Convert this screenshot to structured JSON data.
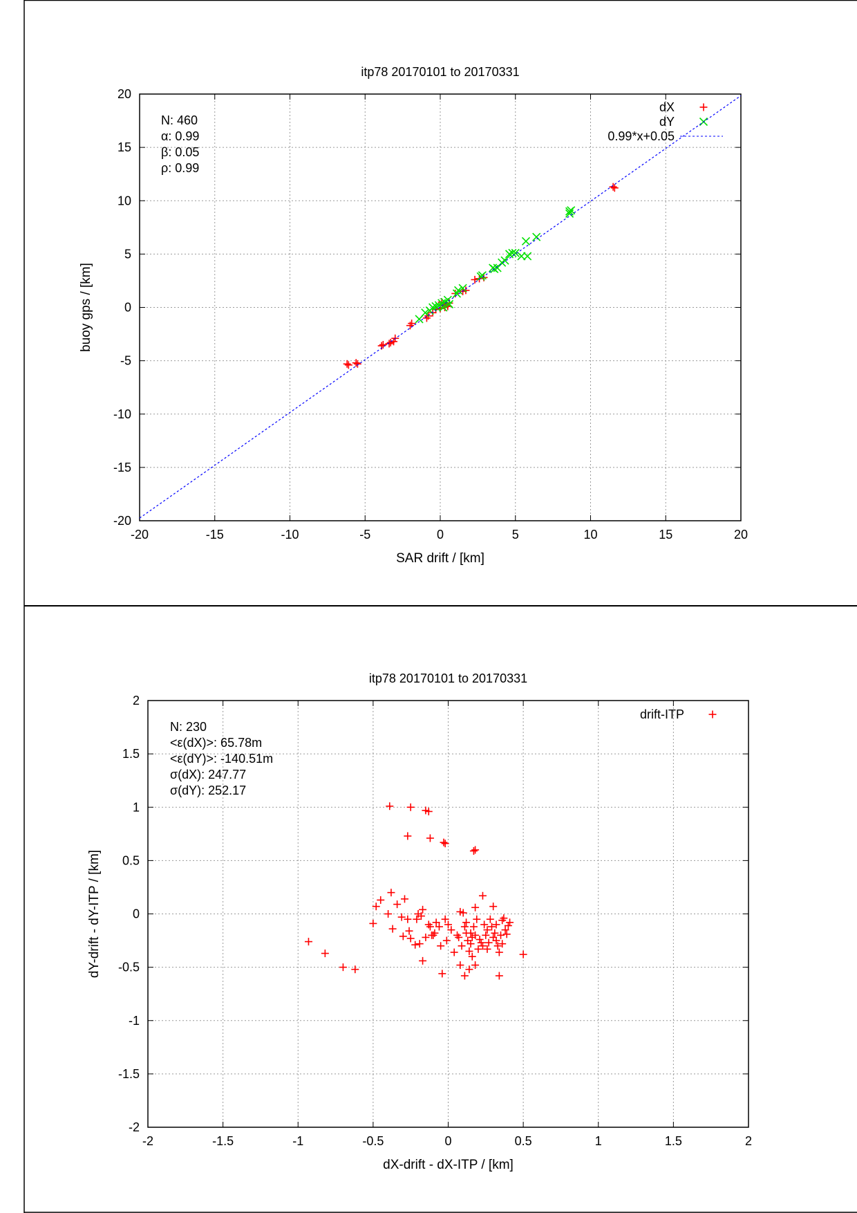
{
  "chart_data": [
    {
      "type": "scatter",
      "title": "itp78 20170101 to 20170331",
      "xlabel": "SAR drift / [km]",
      "ylabel": "buoy gps / [km]",
      "xlim": [
        -20,
        20
      ],
      "ylim": [
        -20,
        20
      ],
      "xticks": [
        -20,
        -15,
        -10,
        -5,
        0,
        5,
        10,
        15,
        20
      ],
      "yticks": [
        -20,
        -15,
        -10,
        -5,
        0,
        5,
        10,
        15,
        20
      ],
      "grid": true,
      "legend_position": "top-right",
      "stats": [
        "N: 460",
        "α: 0.99",
        "β: 0.05",
        "ρ: 0.99"
      ],
      "fit": {
        "label": "0.99*x+0.05",
        "slope": 0.99,
        "intercept": 0.05,
        "color": "#0000ff"
      },
      "series": [
        {
          "name": "dX",
          "marker": "plus",
          "color": "#ff0000",
          "points": [
            [
              -6.2,
              -5.3
            ],
            [
              -6.1,
              -5.4
            ],
            [
              -5.6,
              -5.2
            ],
            [
              -5.5,
              -5.3
            ],
            [
              -3.9,
              -3.6
            ],
            [
              -3.8,
              -3.5
            ],
            [
              -3.4,
              -3.4
            ],
            [
              -3.3,
              -3.3
            ],
            [
              -3.1,
              -3.2
            ],
            [
              -3.0,
              -2.9
            ],
            [
              -2.0,
              -1.7
            ],
            [
              -1.9,
              -1.5
            ],
            [
              -0.9,
              -1.0
            ],
            [
              -0.8,
              -0.8
            ],
            [
              -0.5,
              -0.5
            ],
            [
              -0.3,
              -0.2
            ],
            [
              0,
              -0.1
            ],
            [
              0.2,
              0.2
            ],
            [
              0.3,
              0.0
            ],
            [
              0.5,
              0.1
            ],
            [
              0.1,
              0.5
            ],
            [
              0.4,
              0.3
            ],
            [
              0.6,
              0.4
            ],
            [
              1.0,
              1.3
            ],
            [
              1.5,
              1.5
            ],
            [
              1.7,
              1.6
            ],
            [
              2.3,
              2.6
            ],
            [
              2.6,
              2.7
            ],
            [
              2.9,
              2.8
            ],
            [
              11.5,
              11.3
            ],
            [
              11.6,
              11.2
            ]
          ]
        },
        {
          "name": "dY",
          "marker": "cross",
          "color": "#00e000",
          "points": [
            [
              -1.4,
              -1.1
            ],
            [
              -1.0,
              -0.5
            ],
            [
              -0.7,
              -0.3
            ],
            [
              -0.5,
              0
            ],
            [
              -0.3,
              0.1
            ],
            [
              -0.1,
              0.2
            ],
            [
              0.1,
              0.4
            ],
            [
              0.3,
              0.5
            ],
            [
              0.5,
              0.7
            ],
            [
              0.6,
              0.3
            ],
            [
              0.2,
              0.0
            ],
            [
              1.1,
              1.3
            ],
            [
              1.2,
              1.6
            ],
            [
              1.5,
              1.8
            ],
            [
              2.7,
              2.9
            ],
            [
              2.8,
              3.0
            ],
            [
              3.5,
              3.7
            ],
            [
              3.6,
              3.6
            ],
            [
              3.8,
              3.7
            ],
            [
              4.1,
              4.2
            ],
            [
              4.3,
              4.4
            ],
            [
              4.6,
              5.0
            ],
            [
              4.8,
              5.1
            ],
            [
              5.0,
              5.1
            ],
            [
              5.4,
              4.8
            ],
            [
              5.8,
              4.8
            ],
            [
              5.7,
              6.2
            ],
            [
              6.4,
              6.6
            ],
            [
              8.6,
              9.0
            ],
            [
              8.6,
              8.8
            ],
            [
              8.7,
              9.1
            ]
          ]
        }
      ]
    },
    {
      "type": "scatter",
      "title": "itp78 20170101 to 20170331",
      "xlabel": "dX-drift - dX-ITP / [km]",
      "ylabel": "dY-drift - dY-ITP / [km]",
      "xlim": [
        -2,
        2
      ],
      "ylim": [
        -2,
        2
      ],
      "xticks": [
        -2,
        -1.5,
        -1,
        -0.5,
        0,
        0.5,
        1,
        1.5,
        2
      ],
      "yticks": [
        -2,
        -1.5,
        -1,
        -0.5,
        0,
        0.5,
        1,
        1.5,
        2
      ],
      "grid": true,
      "legend_position": "top-right",
      "stats": [
        "N: 230",
        "<ε(dX)>:  65.78m",
        "<ε(dY)>: -140.51m",
        "σ(dX):  247.77",
        "σ(dY):  252.17"
      ],
      "series": [
        {
          "name": "drift-ITP",
          "marker": "plus",
          "color": "#ff0000",
          "points": [
            [
              -0.39,
              1.01
            ],
            [
              -0.25,
              1.0
            ],
            [
              -0.15,
              0.97
            ],
            [
              -0.13,
              0.96
            ],
            [
              -0.27,
              0.73
            ],
            [
              -0.12,
              0.71
            ],
            [
              -0.03,
              0.67
            ],
            [
              -0.02,
              0.66
            ],
            [
              0.17,
              0.59
            ],
            [
              0.18,
              0.6
            ],
            [
              -0.93,
              -0.26
            ],
            [
              -0.82,
              -0.37
            ],
            [
              -0.7,
              -0.5
            ],
            [
              -0.62,
              -0.52
            ],
            [
              -0.5,
              -0.09
            ],
            [
              -0.48,
              0.07
            ],
            [
              -0.45,
              0.13
            ],
            [
              -0.38,
              0.2
            ],
            [
              -0.34,
              0.09
            ],
            [
              -0.29,
              0.14
            ],
            [
              -0.31,
              -0.03
            ],
            [
              -0.3,
              -0.21
            ],
            [
              -0.37,
              -0.14
            ],
            [
              -0.4,
              0.0
            ],
            [
              -0.25,
              -0.23
            ],
            [
              -0.26,
              -0.16
            ],
            [
              -0.27,
              -0.05
            ],
            [
              -0.2,
              0.0
            ],
            [
              -0.21,
              -0.05
            ],
            [
              -0.19,
              -0.28
            ],
            [
              -0.18,
              -0.02
            ],
            [
              -0.17,
              0.04
            ],
            [
              -0.15,
              -0.22
            ],
            [
              -0.13,
              -0.1
            ],
            [
              -0.12,
              -0.12
            ],
            [
              -0.1,
              -0.2
            ],
            [
              -0.09,
              -0.18
            ],
            [
              -0.08,
              -0.08
            ],
            [
              -0.06,
              -0.12
            ],
            [
              -0.05,
              -0.3
            ],
            [
              -0.17,
              -0.44
            ],
            [
              -0.04,
              -0.56
            ],
            [
              -0.01,
              -0.25
            ],
            [
              -0.02,
              -0.05
            ],
            [
              0.02,
              -0.15
            ],
            [
              0.04,
              -0.36
            ],
            [
              0.06,
              -0.2
            ],
            [
              0.08,
              0.02
            ],
            [
              0.1,
              0.01
            ],
            [
              0.12,
              -0.08
            ],
            [
              0.11,
              -0.12
            ],
            [
              0.09,
              -0.3
            ],
            [
              0.13,
              -0.25
            ],
            [
              0.14,
              -0.35
            ],
            [
              0.15,
              -0.28
            ],
            [
              0.16,
              -0.4
            ],
            [
              0.17,
              -0.12
            ],
            [
              0.18,
              -0.2
            ],
            [
              0.19,
              -0.05
            ],
            [
              0.2,
              -0.33
            ],
            [
              0.22,
              -0.27
            ],
            [
              0.23,
              -0.3
            ],
            [
              0.24,
              -0.1
            ],
            [
              0.25,
              -0.2
            ],
            [
              0.26,
              -0.15
            ],
            [
              0.27,
              -0.27
            ],
            [
              0.28,
              -0.05
            ],
            [
              0.29,
              -0.12
            ],
            [
              0.3,
              -0.22
            ],
            [
              0.31,
              -0.18
            ],
            [
              0.32,
              -0.1
            ],
            [
              0.33,
              -0.3
            ],
            [
              0.34,
              -0.36
            ],
            [
              0.35,
              -0.2
            ],
            [
              0.36,
              -0.06
            ],
            [
              0.37,
              -0.04
            ],
            [
              0.38,
              -0.15
            ],
            [
              0.39,
              -0.19
            ],
            [
              0.4,
              -0.11
            ],
            [
              0.41,
              -0.08
            ],
            [
              0.14,
              -0.52
            ],
            [
              0.11,
              -0.58
            ],
            [
              0.18,
              -0.48
            ],
            [
              0.08,
              -0.48
            ],
            [
              0.34,
              -0.58
            ],
            [
              0.5,
              -0.38
            ],
            [
              0.23,
              0.17
            ],
            [
              0.3,
              0.07
            ],
            [
              0.18,
              0.06
            ],
            [
              0.12,
              -0.18
            ],
            [
              0.07,
              -0.22
            ],
            [
              0.21,
              -0.24
            ],
            [
              0.15,
              -0.18
            ],
            [
              0.26,
              -0.33
            ],
            [
              0.32,
              -0.25
            ],
            [
              0.36,
              -0.28
            ],
            [
              -0.22,
              -0.29
            ],
            [
              -0.11,
              -0.2
            ],
            [
              0.0,
              -0.1
            ],
            [
              0.16,
              -0.22
            ]
          ]
        }
      ]
    }
  ]
}
